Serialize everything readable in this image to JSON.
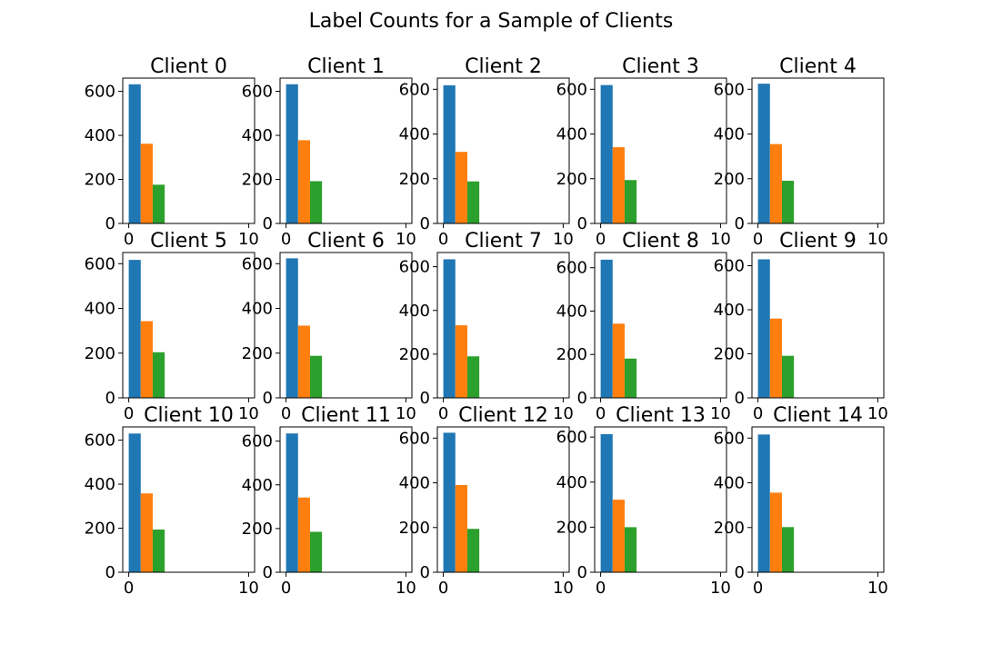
{
  "figure": {
    "title": "Label Counts for a Sample of Clients"
  },
  "colors": [
    "#1f77b4",
    "#ff7f0e",
    "#2ca02c"
  ],
  "chart_data": {
    "type": "bar",
    "layout": "3 rows x 5 columns grid",
    "xlim": [
      -0.5,
      10.5
    ],
    "xticks": [
      0,
      10
    ],
    "bar_width": 1,
    "bar_x": [
      0.5,
      1.5,
      2.5
    ],
    "grid": false,
    "legend": "none",
    "subplots": [
      {
        "title": "Client 0",
        "ylim": [
          0,
          660
        ],
        "yticks": [
          0,
          200,
          400,
          600
        ],
        "values": [
          632,
          362,
          176
        ]
      },
      {
        "title": "Client 1",
        "ylim": [
          0,
          660
        ],
        "yticks": [
          0,
          200,
          400,
          600
        ],
        "values": [
          632,
          378,
          192
        ]
      },
      {
        "title": "Client 2",
        "ylim": [
          0,
          650
        ],
        "yticks": [
          0,
          200,
          400,
          600
        ],
        "values": [
          618,
          320,
          188
        ]
      },
      {
        "title": "Client 3",
        "ylim": [
          0,
          650
        ],
        "yticks": [
          0,
          200,
          400,
          600
        ],
        "values": [
          619,
          341,
          194
        ]
      },
      {
        "title": "Client 4",
        "ylim": [
          0,
          650
        ],
        "yticks": [
          0,
          200,
          400,
          600
        ],
        "values": [
          625,
          355,
          191
        ]
      },
      {
        "title": "Client 5",
        "ylim": [
          0,
          650
        ],
        "yticks": [
          0,
          200,
          400,
          600
        ],
        "values": [
          617,
          343,
          204
        ]
      },
      {
        "title": "Client 6",
        "ylim": [
          0,
          650
        ],
        "yticks": [
          0,
          200,
          400,
          600
        ],
        "values": [
          624,
          323,
          188
        ]
      },
      {
        "title": "Client 7",
        "ylim": [
          0,
          665
        ],
        "yticks": [
          0,
          200,
          400,
          600
        ],
        "values": [
          634,
          332,
          190
        ]
      },
      {
        "title": "Client 8",
        "ylim": [
          0,
          670
        ],
        "yticks": [
          0,
          200,
          400,
          600
        ],
        "values": [
          637,
          342,
          181
        ]
      },
      {
        "title": "Client 9",
        "ylim": [
          0,
          660
        ],
        "yticks": [
          0,
          200,
          400,
          600
        ],
        "values": [
          629,
          360,
          191
        ]
      },
      {
        "title": "Client 10",
        "ylim": [
          0,
          660
        ],
        "yticks": [
          0,
          200,
          400,
          600
        ],
        "values": [
          630,
          358,
          194
        ]
      },
      {
        "title": "Client 11",
        "ylim": [
          0,
          665
        ],
        "yticks": [
          0,
          200,
          400,
          600
        ],
        "values": [
          635,
          342,
          185
        ]
      },
      {
        "title": "Client 12",
        "ylim": [
          0,
          650
        ],
        "yticks": [
          0,
          200,
          400,
          600
        ],
        "values": [
          624,
          390,
          194
        ]
      },
      {
        "title": "Client 13",
        "ylim": [
          0,
          645
        ],
        "yticks": [
          0,
          200,
          400,
          600
        ],
        "values": [
          613,
          322,
          200
        ]
      },
      {
        "title": "Client 14",
        "ylim": [
          0,
          650
        ],
        "yticks": [
          0,
          200,
          400,
          600
        ],
        "values": [
          616,
          356,
          202
        ]
      }
    ]
  }
}
